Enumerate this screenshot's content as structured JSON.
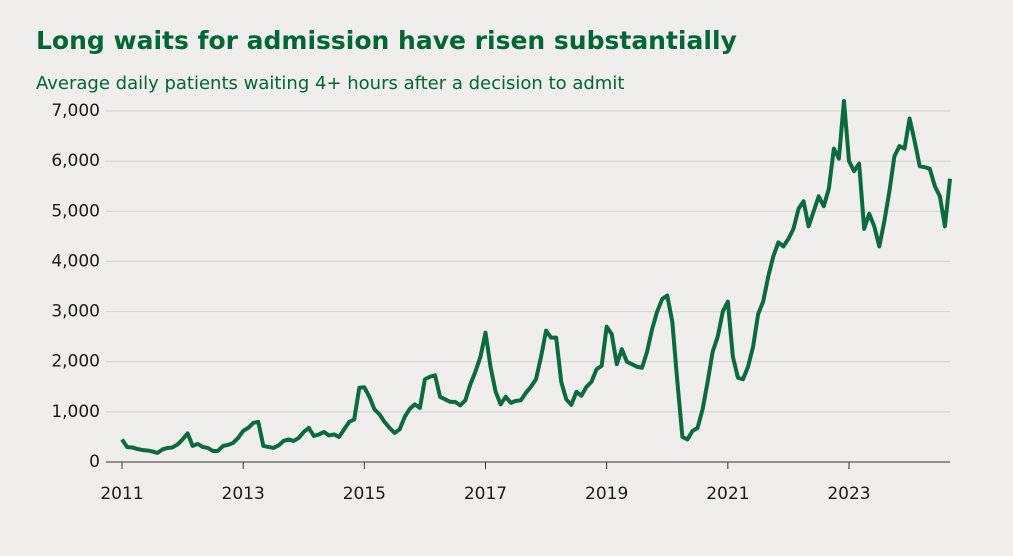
{
  "chart_data": {
    "type": "line",
    "title": "Long waits for admission have risen substantially",
    "subtitle": "Average daily patients waiting 4+ hours after a decision to admit",
    "x": [
      2011,
      2011.083,
      2011.167,
      2011.25,
      2011.333,
      2011.417,
      2011.5,
      2011.583,
      2011.667,
      2011.75,
      2011.833,
      2011.917,
      2012,
      2012.083,
      2012.167,
      2012.25,
      2012.333,
      2012.417,
      2012.5,
      2012.583,
      2012.667,
      2012.75,
      2012.833,
      2012.917,
      2013,
      2013.083,
      2013.167,
      2013.25,
      2013.333,
      2013.417,
      2013.5,
      2013.583,
      2013.667,
      2013.75,
      2013.833,
      2013.917,
      2014,
      2014.083,
      2014.167,
      2014.25,
      2014.333,
      2014.417,
      2014.5,
      2014.583,
      2014.667,
      2014.75,
      2014.833,
      2014.917,
      2015,
      2015.083,
      2015.167,
      2015.25,
      2015.333,
      2015.417,
      2015.5,
      2015.583,
      2015.667,
      2015.75,
      2015.833,
      2015.917,
      2016,
      2016.083,
      2016.167,
      2016.25,
      2016.333,
      2016.417,
      2016.5,
      2016.583,
      2016.667,
      2016.75,
      2016.833,
      2016.917,
      2017,
      2017.083,
      2017.167,
      2017.25,
      2017.333,
      2017.417,
      2017.5,
      2017.583,
      2017.667,
      2017.75,
      2017.833,
      2017.917,
      2018,
      2018.083,
      2018.167,
      2018.25,
      2018.333,
      2018.417,
      2018.5,
      2018.583,
      2018.667,
      2018.75,
      2018.833,
      2018.917,
      2019,
      2019.083,
      2019.167,
      2019.25,
      2019.333,
      2019.417,
      2019.5,
      2019.583,
      2019.667,
      2019.75,
      2019.833,
      2019.917,
      2020,
      2020.083,
      2020.167,
      2020.25,
      2020.333,
      2020.417,
      2020.5,
      2020.583,
      2020.667,
      2020.75,
      2020.833,
      2020.917,
      2021,
      2021.083,
      2021.167,
      2021.25,
      2021.333,
      2021.417,
      2021.5,
      2021.583,
      2021.667,
      2021.75,
      2021.833,
      2021.917,
      2022,
      2022.083,
      2022.167,
      2022.25,
      2022.333,
      2022.417,
      2022.5,
      2022.583,
      2022.667,
      2022.75,
      2022.833,
      2022.917,
      2023,
      2023.083,
      2023.167,
      2023.25,
      2023.333,
      2023.417,
      2023.5,
      2023.583,
      2023.667,
      2023.75,
      2023.833,
      2023.917,
      2024,
      2024.083,
      2024.167,
      2024.25,
      2024.333,
      2024.417,
      2024.5,
      2024.583,
      2024.667
    ],
    "series": [
      {
        "color": "#0b6b3c",
        "values": [
          450,
          300,
          290,
          260,
          240,
          230,
          210,
          180,
          250,
          280,
          290,
          350,
          450,
          570,
          320,
          360,
          300,
          280,
          220,
          220,
          320,
          340,
          380,
          480,
          620,
          680,
          780,
          800,
          320,
          300,
          280,
          330,
          420,
          450,
          420,
          480,
          600,
          680,
          520,
          550,
          600,
          530,
          550,
          500,
          650,
          800,
          850,
          1480,
          1490,
          1300,
          1050,
          950,
          800,
          680,
          580,
          650,
          900,
          1060,
          1150,
          1080,
          1650,
          1700,
          1730,
          1300,
          1250,
          1200,
          1200,
          1130,
          1230,
          1550,
          1800,
          2100,
          2580,
          1900,
          1400,
          1150,
          1300,
          1180,
          1220,
          1230,
          1380,
          1500,
          1650,
          2100,
          2620,
          2480,
          2480,
          1600,
          1250,
          1140,
          1400,
          1320,
          1500,
          1600,
          1850,
          1920,
          2700,
          2550,
          1950,
          2250,
          2000,
          1950,
          1900,
          1880,
          2200,
          2650,
          3000,
          3250,
          3320,
          2800,
          1600,
          500,
          450,
          620,
          680,
          1050,
          1600,
          2200,
          2500,
          3000,
          3200,
          2100,
          1680,
          1650,
          1900,
          2300,
          2950,
          3200,
          3700,
          4100,
          4380,
          4300,
          4450,
          4650,
          5050,
          5200,
          4700,
          5000,
          5300,
          5100,
          5450,
          6250,
          6050,
          7200,
          6000,
          5800,
          5950,
          4650,
          4950,
          4700,
          4300,
          4800,
          5400,
          6100,
          6300,
          6250,
          6850,
          6400,
          5900,
          5880,
          5850,
          5500,
          5300,
          4700,
          5650
        ]
      }
    ],
    "xlim": [
      2011,
      2024.667
    ],
    "xticks": [
      2011,
      2013,
      2015,
      2017,
      2019,
      2021,
      2023
    ],
    "ylim": [
      0,
      7000
    ],
    "yticks": [
      0,
      {
        "value": 1000,
        "label": "1,000"
      },
      {
        "value": 2000,
        "label": "2,000"
      },
      {
        "value": 3000,
        "label": "3,000"
      },
      {
        "value": 4000,
        "label": "4,000"
      },
      {
        "value": 5000,
        "label": "5,000"
      },
      {
        "value": 6000,
        "label": "6,000"
      },
      {
        "value": 7000,
        "label": "7,000"
      }
    ],
    "grid": true
  }
}
